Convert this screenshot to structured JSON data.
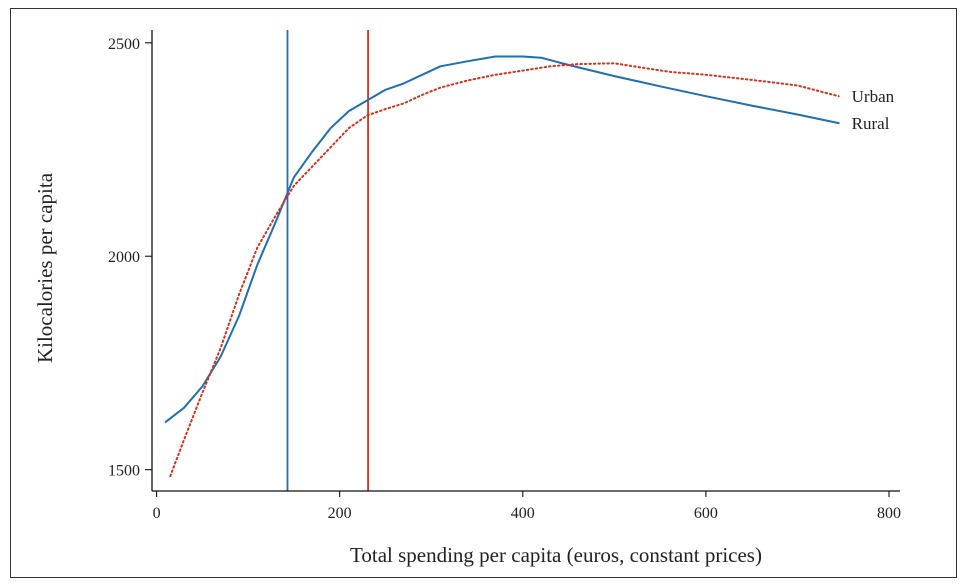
{
  "chart_data": {
    "type": "line",
    "title": "",
    "xlabel": "Total spending per capita (euros, constant prices)",
    "ylabel": "Kilocalories per capita",
    "xlim": [
      -5,
      812
    ],
    "ylim": [
      1450,
      2530
    ],
    "x_ticks": [
      0,
      200,
      400,
      600,
      800
    ],
    "y_ticks": [
      1500,
      2000,
      2500
    ],
    "grid": false,
    "legend": "direct labels at line ends (right)",
    "series": [
      {
        "name": "Rural",
        "color": "#1f6fb2",
        "style": "solid",
        "points": [
          [
            10,
            1612
          ],
          [
            30,
            1645
          ],
          [
            50,
            1695
          ],
          [
            70,
            1765
          ],
          [
            90,
            1860
          ],
          [
            110,
            1980
          ],
          [
            130,
            2080
          ],
          [
            150,
            2185
          ],
          [
            170,
            2245
          ],
          [
            190,
            2300
          ],
          [
            210,
            2340
          ],
          [
            230,
            2365
          ],
          [
            250,
            2390
          ],
          [
            270,
            2405
          ],
          [
            290,
            2425
          ],
          [
            310,
            2445
          ],
          [
            340,
            2457
          ],
          [
            370,
            2468
          ],
          [
            400,
            2468
          ],
          [
            420,
            2465
          ],
          [
            450,
            2448
          ],
          [
            500,
            2422
          ],
          [
            550,
            2398
          ],
          [
            600,
            2375
          ],
          [
            650,
            2353
          ],
          [
            700,
            2332
          ],
          [
            745,
            2312
          ]
        ]
      },
      {
        "name": "Urban",
        "color": "#d9301c",
        "style": "dotted",
        "points": [
          [
            15,
            1485
          ],
          [
            30,
            1570
          ],
          [
            50,
            1680
          ],
          [
            70,
            1785
          ],
          [
            90,
            1910
          ],
          [
            110,
            2020
          ],
          [
            130,
            2095
          ],
          [
            150,
            2165
          ],
          [
            170,
            2210
          ],
          [
            190,
            2255
          ],
          [
            210,
            2300
          ],
          [
            230,
            2330
          ],
          [
            250,
            2345
          ],
          [
            270,
            2358
          ],
          [
            290,
            2378
          ],
          [
            310,
            2395
          ],
          [
            340,
            2412
          ],
          [
            370,
            2425
          ],
          [
            400,
            2435
          ],
          [
            430,
            2445
          ],
          [
            460,
            2450
          ],
          [
            500,
            2452
          ],
          [
            530,
            2442
          ],
          [
            560,
            2432
          ],
          [
            600,
            2425
          ],
          [
            650,
            2413
          ],
          [
            700,
            2400
          ],
          [
            745,
            2375
          ]
        ]
      }
    ],
    "vertical_lines": [
      {
        "x": 143,
        "color": "#1f6fb2"
      },
      {
        "x": 231,
        "color": "#d9301c"
      }
    ]
  }
}
